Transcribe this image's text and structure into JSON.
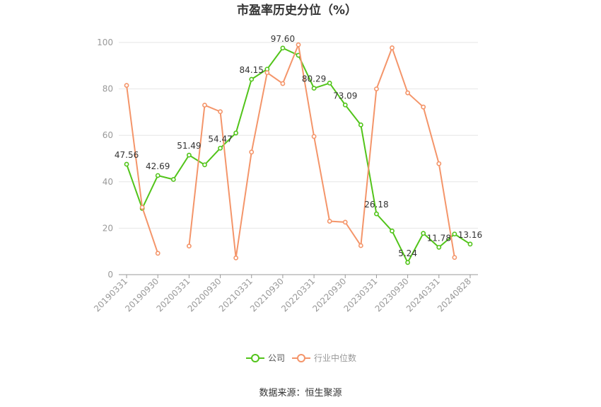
{
  "chart_data": {
    "type": "line",
    "title": "市盈率历史分位（%）",
    "source": "数据来源：恒生聚源",
    "ylim": [
      0,
      100
    ],
    "yticks": [
      0,
      20,
      40,
      60,
      80,
      100
    ],
    "xtick_labels": [
      "20190331",
      "20190930",
      "20200331",
      "20200930",
      "20210331",
      "20210930",
      "20220331",
      "20220930",
      "20230331",
      "20230930",
      "20240331",
      "20240828"
    ],
    "x": [
      "20190331",
      "20190630",
      "20190930",
      "20191231",
      "20200331",
      "20200630",
      "20200930",
      "20201231",
      "20210331",
      "20210630",
      "20210930",
      "20211231",
      "20220331",
      "20220630",
      "20220930",
      "20221231",
      "20230331",
      "20230630",
      "20230930",
      "20231231",
      "20240331",
      "20240630",
      "20240828"
    ],
    "grid": true,
    "legend_position": "bottom",
    "series": [
      {
        "name": "公司",
        "color": "#52c41a",
        "values": [
          47.56,
          28.5,
          42.69,
          41.0,
          51.49,
          47.3,
          54.47,
          61.0,
          84.15,
          88.5,
          97.6,
          94.5,
          80.29,
          82.5,
          73.09,
          64.5,
          26.18,
          18.8,
          5.24,
          17.8,
          11.78,
          17.5,
          13.16
        ],
        "labeled_indices": [
          0,
          2,
          4,
          6,
          8,
          10,
          12,
          14,
          16,
          18,
          20,
          22
        ]
      },
      {
        "name": "行业中位数",
        "color": "#f4956a",
        "values": [
          81.5,
          29.0,
          9.2,
          null,
          12.3,
          73.0,
          70.2,
          7.2,
          52.8,
          87.0,
          82.3,
          99.0,
          59.5,
          23.0,
          22.6,
          12.5,
          80.0,
          97.7,
          78.3,
          72.2,
          47.8,
          7.4,
          null
        ]
      }
    ]
  }
}
